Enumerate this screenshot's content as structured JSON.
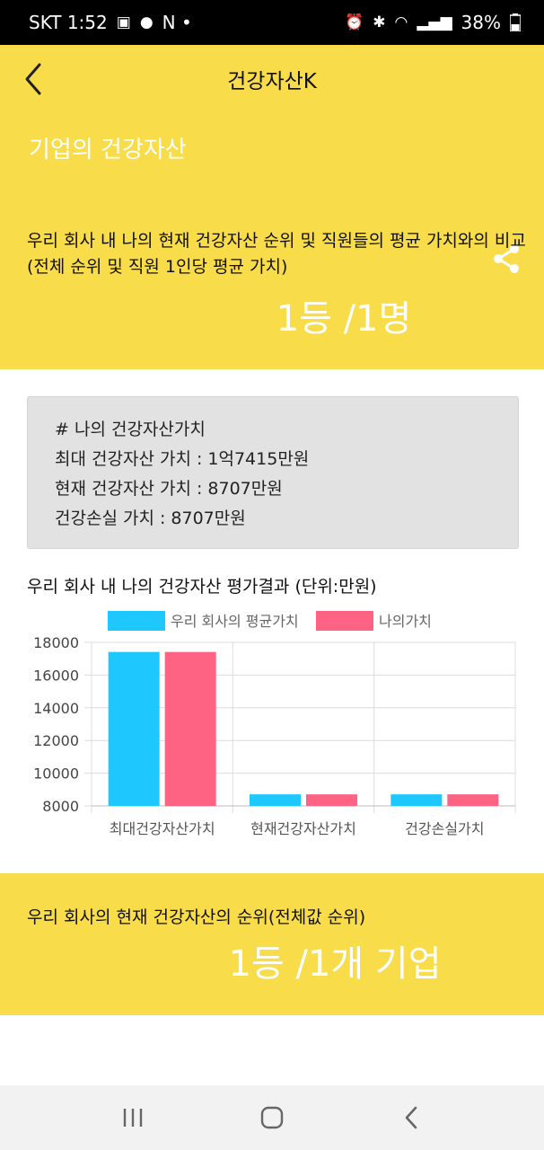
{
  "status_bar": {
    "carrier_time": "SKT 1:52",
    "left_extra": "N  •",
    "battery": "38%"
  },
  "app_bar": {
    "title": "건강자산K",
    "back_icon": "chevron-left-icon"
  },
  "hero": {
    "title": "기업의 건강자산",
    "share_icon": "share-icon",
    "description": "우리 회사 내 나의 현재 건강자산 순위 및 직원들의 평균 가치와의 비교 (전체 순위 및 직원 1인당 평균 가치)",
    "rank": "1등 /1명"
  },
  "value_card": {
    "heading": "# 나의 건강자산가치",
    "max_value": "최대 건강자산 가치 : 1억7415만원",
    "current_value": "현재 건강자산 가치 : 8707만원",
    "loss_value": "건강손실 가치 : 8707만원"
  },
  "chart_title": "우리 회사 내 나의 건강자산 평가결과 (단위:만원)",
  "chart_data": {
    "type": "bar",
    "categories": [
      "최대건강자산가치",
      "현재건강자산가치",
      "건강손실가치"
    ],
    "series": [
      {
        "name": "우리 회사의 평균가치",
        "values": [
          17415,
          8707,
          8707
        ],
        "color": "#1ec8ff"
      },
      {
        "name": "나의가치",
        "values": [
          17415,
          8707,
          8707
        ],
        "color": "#ff6384"
      }
    ],
    "ylim": [
      8000,
      18000
    ],
    "yticks": [
      8000,
      10000,
      12000,
      14000,
      16000,
      18000
    ],
    "grid": true,
    "legend": "top"
  },
  "company": {
    "description": "우리 회사의 현재 건강자산의 순위(전체값 순위)",
    "rank": "1등 /1개 기업"
  },
  "nav_bar": {
    "recents_icon": "recents-icon",
    "home_icon": "home-icon",
    "back_icon": "back-icon"
  }
}
